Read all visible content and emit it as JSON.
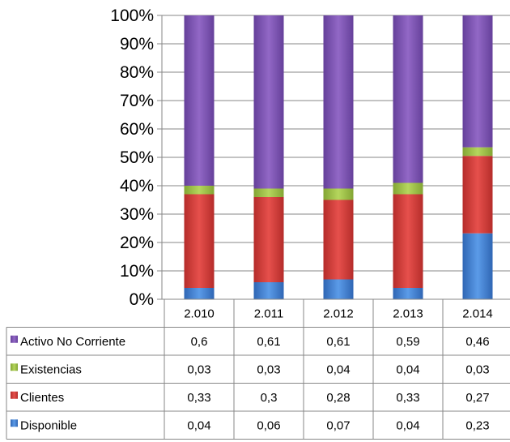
{
  "chart_data": {
    "type": "bar",
    "stacked": "percent",
    "categories": [
      "2.010",
      "2.011",
      "2.012",
      "2.013",
      "2.014"
    ],
    "yticks": [
      "0%",
      "10%",
      "20%",
      "30%",
      "40%",
      "50%",
      "60%",
      "70%",
      "80%",
      "90%",
      "100%"
    ],
    "ylim": [
      0,
      1
    ],
    "grid": true,
    "legend": "data-table",
    "series": [
      {
        "name": "Disponible",
        "display": "0,04|0,06|0,07|0,04|0,23",
        "values": [
          0.04,
          0.06,
          0.07,
          0.04,
          0.23
        ],
        "labels": [
          "0,04",
          "0,06",
          "0,07",
          "0,04",
          "0,23"
        ],
        "color": "#3f7fd0"
      },
      {
        "name": "Clientes",
        "values": [
          0.33,
          0.3,
          0.28,
          0.33,
          0.27
        ],
        "labels": [
          "0,33",
          "0,3",
          "0,28",
          "0,33",
          "0,27"
        ],
        "color": "#d63a37"
      },
      {
        "name": "Existencias",
        "values": [
          0.03,
          0.03,
          0.04,
          0.04,
          0.03
        ],
        "labels": [
          "0,03",
          "0,03",
          "0,04",
          "0,04",
          "0,03"
        ],
        "color": "#9cbe44"
      },
      {
        "name": "Activo No Corriente",
        "values": [
          0.6,
          0.61,
          0.61,
          0.59,
          0.46
        ],
        "labels": [
          "0,6",
          "0,61",
          "0,61",
          "0,59",
          "0,46"
        ],
        "color": "#7b52ae"
      }
    ],
    "table_rows_order": [
      "Activo No Corriente",
      "Existencias",
      "Clientes",
      "Disponible"
    ]
  }
}
